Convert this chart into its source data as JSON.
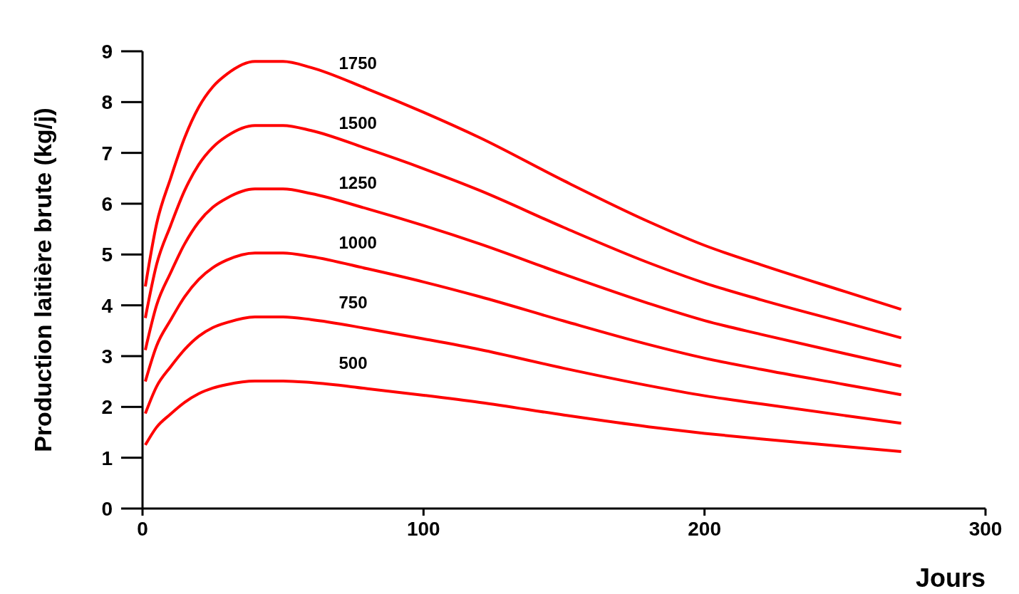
{
  "chart_data": {
    "type": "line",
    "xlabel": "Jours",
    "ylabel": "Production laitière brute (kg/j)",
    "x": [
      1,
      5,
      10,
      15,
      20,
      25,
      30,
      40,
      50,
      60,
      80,
      100,
      120,
      150,
      180,
      200,
      220,
      250,
      270
    ],
    "xlim": [
      0,
      300
    ],
    "xticks": [
      0,
      100,
      200,
      300
    ],
    "ylim": [
      0,
      9
    ],
    "yticks": [
      0,
      1,
      2,
      3,
      4,
      5,
      6,
      7,
      8,
      9
    ],
    "marker": "none",
    "line_style": "solid",
    "series": [
      {
        "name": "1750",
        "color": "#ff0000",
        "values": [
          4.37,
          5.6,
          6.5,
          7.3,
          7.9,
          8.3,
          8.55,
          8.8,
          8.8,
          8.68,
          8.26,
          7.8,
          7.3,
          6.45,
          5.65,
          5.18,
          4.8,
          4.27,
          3.92
        ]
      },
      {
        "name": "1500",
        "color": "#ff0000",
        "values": [
          3.75,
          4.8,
          5.57,
          6.26,
          6.77,
          7.11,
          7.33,
          7.54,
          7.54,
          7.44,
          7.08,
          6.69,
          6.26,
          5.53,
          4.84,
          4.44,
          4.11,
          3.66,
          3.36
        ]
      },
      {
        "name": "1250",
        "color": "#ff0000",
        "values": [
          3.12,
          4.0,
          4.64,
          5.21,
          5.64,
          5.93,
          6.11,
          6.29,
          6.29,
          6.2,
          5.9,
          5.57,
          5.21,
          4.61,
          4.04,
          3.7,
          3.43,
          3.05,
          2.8
        ]
      },
      {
        "name": "1000",
        "color": "#ff0000",
        "values": [
          2.5,
          3.2,
          3.71,
          4.17,
          4.51,
          4.74,
          4.89,
          5.03,
          5.03,
          4.96,
          4.72,
          4.46,
          4.17,
          3.69,
          3.23,
          2.96,
          2.74,
          2.44,
          2.24
        ]
      },
      {
        "name": "750",
        "color": "#ff0000",
        "values": [
          1.87,
          2.4,
          2.79,
          3.13,
          3.39,
          3.56,
          3.66,
          3.77,
          3.77,
          3.72,
          3.54,
          3.34,
          3.13,
          2.76,
          2.42,
          2.22,
          2.06,
          1.83,
          1.68
        ]
      },
      {
        "name": "500",
        "color": "#ff0000",
        "values": [
          1.25,
          1.6,
          1.86,
          2.09,
          2.26,
          2.37,
          2.44,
          2.51,
          2.51,
          2.48,
          2.36,
          2.23,
          2.09,
          1.84,
          1.61,
          1.48,
          1.37,
          1.22,
          1.12
        ]
      }
    ]
  }
}
